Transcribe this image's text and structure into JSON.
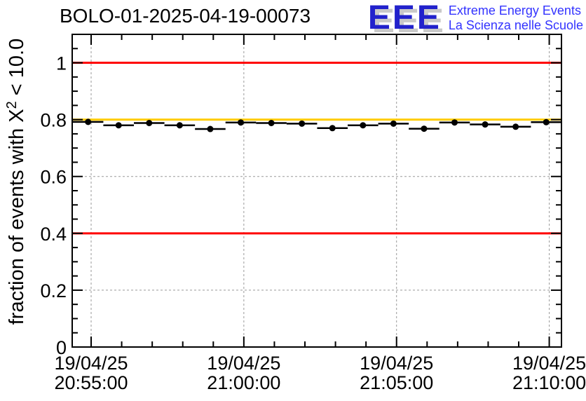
{
  "header": {
    "title": "BOLO-01-2025-04-19-00073",
    "logo": {
      "acronym": "EEE",
      "line1": "Extreme Energy Events",
      "line2": "La Scienza nelle Scuole",
      "acronym_color": "#2222cc",
      "text_color": "#3333ff",
      "shadow_color": "#c9c9c9"
    }
  },
  "chart_data": {
    "type": "scatter",
    "title": "BOLO-01-2025-04-19-00073",
    "ylabel_parts": {
      "pre": "fraction of events with X",
      "sup": "2",
      "post": " < 10.0"
    },
    "x_axis": {
      "xlim_minutes": [
        -0.62,
        15.4
      ],
      "minor_step_minutes": 1,
      "tick_labels": [
        {
          "date": "19/04/25",
          "time": "20:55:00",
          "minutes": 0
        },
        {
          "date": "19/04/25",
          "time": "21:00:00",
          "minutes": 5
        },
        {
          "date": "19/04/25",
          "time": "21:05:00",
          "minutes": 10
        },
        {
          "date": "19/04/25",
          "time": "21:10:00",
          "minutes": 15
        }
      ]
    },
    "y_axis": {
      "ylim": [
        0,
        1.1
      ],
      "ticks": [
        0,
        0.2,
        0.4,
        0.6,
        0.8,
        1
      ],
      "tick_labels": [
        "0",
        "0.2",
        "0.4",
        "0.6",
        "0.8",
        "1"
      ],
      "minor_step": 0.05
    },
    "grid": {
      "x_minutes": [
        0,
        5,
        10,
        15
      ],
      "y": [
        0.2,
        0.4,
        0.6,
        0.8,
        1.0
      ],
      "color": "#999999",
      "style": "dashed"
    },
    "reference_lines": [
      {
        "value": 1.0,
        "color": "#ff0000"
      },
      {
        "value": 0.8,
        "color": "#ffcc00"
      },
      {
        "value": 0.4,
        "color": "#ff0000"
      }
    ],
    "series": [
      {
        "name": "fraction of events with chi2 < 10",
        "marker": "filled-circle",
        "color": "#000000",
        "xerr_minutes": 0.5,
        "points_minutes": [
          -0.1,
          0.9,
          1.9,
          2.9,
          3.9,
          4.9,
          5.9,
          6.9,
          7.9,
          8.9,
          9.9,
          10.9,
          11.9,
          12.9,
          13.9,
          14.9
        ],
        "values": [
          0.792,
          0.78,
          0.788,
          0.78,
          0.767,
          0.79,
          0.788,
          0.786,
          0.77,
          0.78,
          0.786,
          0.768,
          0.79,
          0.783,
          0.775,
          0.791
        ]
      }
    ]
  }
}
